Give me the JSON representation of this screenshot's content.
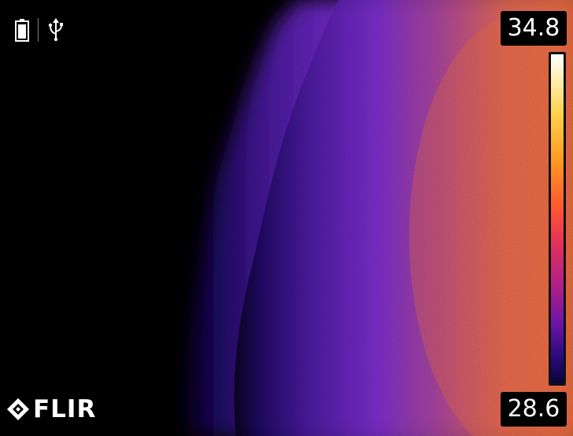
{
  "viewer": {
    "palette": "iron",
    "colors": {
      "background": "#000000",
      "cold": "#2a0a7c",
      "mid": "#7a2dd0",
      "warm": "#e66a58"
    }
  },
  "status_icons": [
    {
      "name": "battery-icon"
    },
    {
      "name": "usb-icon"
    }
  ],
  "temperature_scale": {
    "max": "34.8",
    "min": "28.6"
  },
  "brand": {
    "name": "FLIR"
  }
}
